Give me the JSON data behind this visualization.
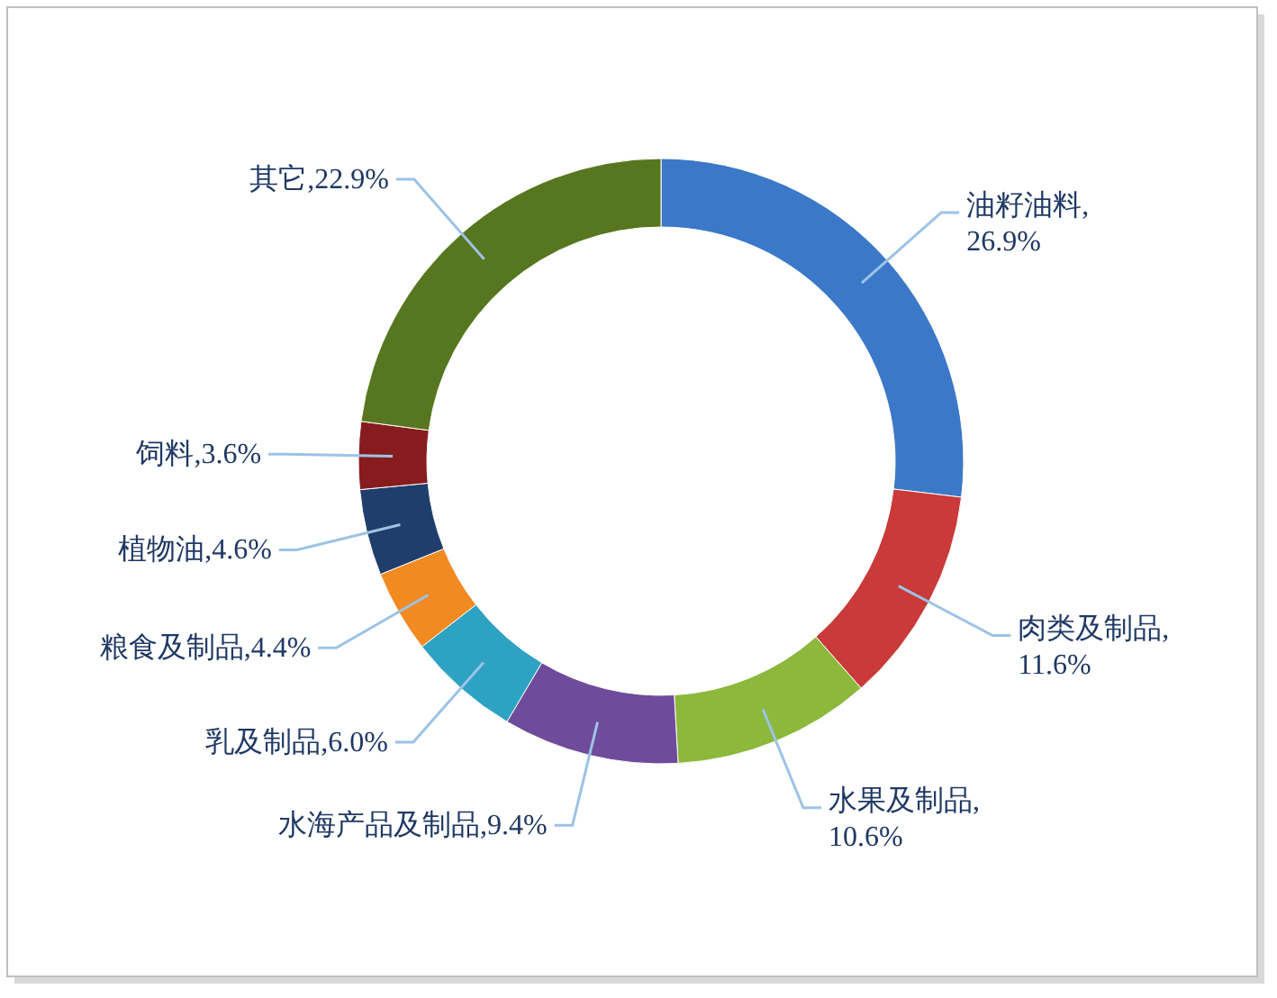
{
  "chart_data": {
    "type": "donut",
    "categories": [
      "油籽油料",
      "肉类及制品",
      "水果及制品",
      "水海产品及制品",
      "乳及制品",
      "粮食及制品",
      "植物油",
      "饲料",
      "其它"
    ],
    "values": [
      26.9,
      11.6,
      10.6,
      9.4,
      6.0,
      4.4,
      4.6,
      3.6,
      22.9
    ],
    "value_labels": [
      ", 26.9%",
      ", 11.6%",
      ", 10.6%",
      ",9.4%",
      ",6.0%",
      ",4.4%",
      ",4.6%",
      ",3.6%",
      ",22.9%"
    ],
    "colors": [
      "#3b78c8",
      "#c93a38",
      "#8cb83c",
      "#6e4b9b",
      "#2ea2c2",
      "#f28a22",
      "#1f3e6c",
      "#861c1e",
      "#56771f"
    ],
    "data_labels": true
  }
}
